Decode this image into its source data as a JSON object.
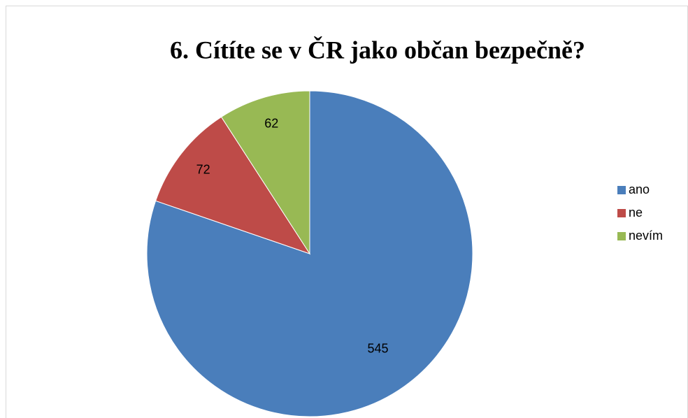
{
  "chart_data": {
    "type": "pie",
    "title": "6. Cítíte se v ČR jako občan bezpečně?",
    "categories": [
      "ano",
      "ne",
      "nevím"
    ],
    "values": [
      545,
      72,
      62
    ],
    "colors": [
      "#4a7ebb",
      "#be4b48",
      "#98b954"
    ],
    "legend": "right"
  }
}
